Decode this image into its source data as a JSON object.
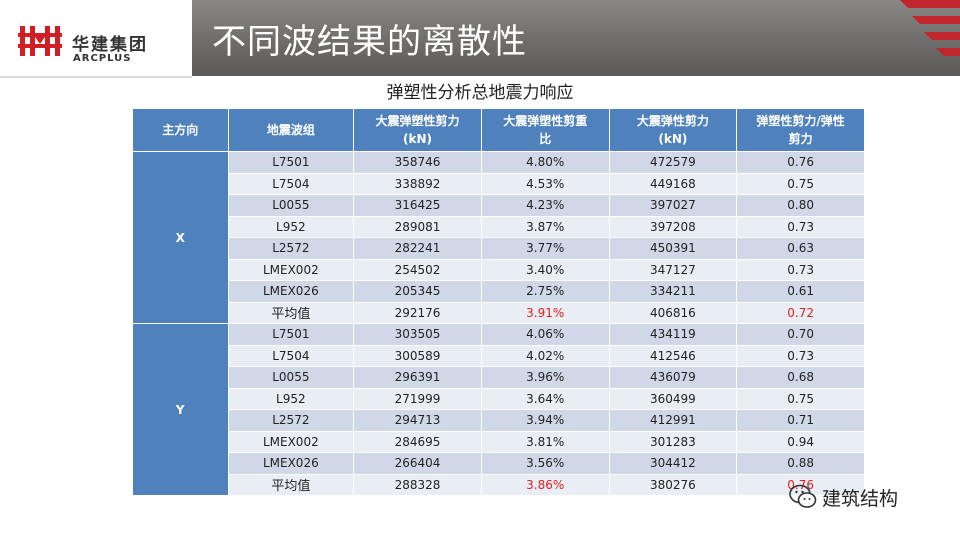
{
  "header": {
    "company_cn": "华建集团",
    "company_en": "ARCPLUS",
    "slide_title": "不同波结果的离散性",
    "accent_color": "#d21f26"
  },
  "subtitle": "弹塑性分析总地震力响应",
  "table": {
    "header_color": "#4f81bd",
    "headers": [
      [
        "主方向"
      ],
      [
        "地震波组"
      ],
      [
        "大震弹塑性剪力",
        "(kN)"
      ],
      [
        "大震弹塑性剪重",
        "比"
      ],
      [
        "大震弹性剪力",
        "(kN)"
      ],
      [
        "弹塑性剪力/弹性",
        "剪力"
      ]
    ],
    "groups": [
      {
        "direction": "X",
        "rows": [
          [
            "L7501",
            "358746",
            "4.80%",
            "472579",
            "0.76"
          ],
          [
            "L7504",
            "338892",
            "4.53%",
            "449168",
            "0.75"
          ],
          [
            "L0055",
            "316425",
            "4.23%",
            "397027",
            "0.80"
          ],
          [
            "L952",
            "289081",
            "3.87%",
            "397208",
            "0.73"
          ],
          [
            "L2572",
            "282241",
            "3.77%",
            "450391",
            "0.63"
          ],
          [
            "LMEX002",
            "254502",
            "3.40%",
            "347127",
            "0.73"
          ],
          [
            "LMEX026",
            "205345",
            "2.75%",
            "334211",
            "0.61"
          ],
          [
            "平均值",
            "292176",
            "3.91%",
            "406816",
            "0.72"
          ]
        ]
      },
      {
        "direction": "Y",
        "rows": [
          [
            "L7501",
            "303505",
            "4.06%",
            "434119",
            "0.70"
          ],
          [
            "L7504",
            "300589",
            "4.02%",
            "412546",
            "0.73"
          ],
          [
            "L0055",
            "296391",
            "3.96%",
            "436079",
            "0.68"
          ],
          [
            "L952",
            "271999",
            "3.64%",
            "360499",
            "0.75"
          ],
          [
            "L2572",
            "294713",
            "3.94%",
            "412991",
            "0.71"
          ],
          [
            "LMEX002",
            "284695",
            "3.81%",
            "301283",
            "0.94"
          ],
          [
            "LMEX026",
            "266404",
            "3.56%",
            "304412",
            "0.88"
          ],
          [
            "平均值",
            "288328",
            "3.86%",
            "380276",
            "0.76"
          ]
        ]
      }
    ],
    "highlight_color": "#e02020"
  },
  "watermark": {
    "text": "建筑结构",
    "icon": "wechat-icon"
  }
}
